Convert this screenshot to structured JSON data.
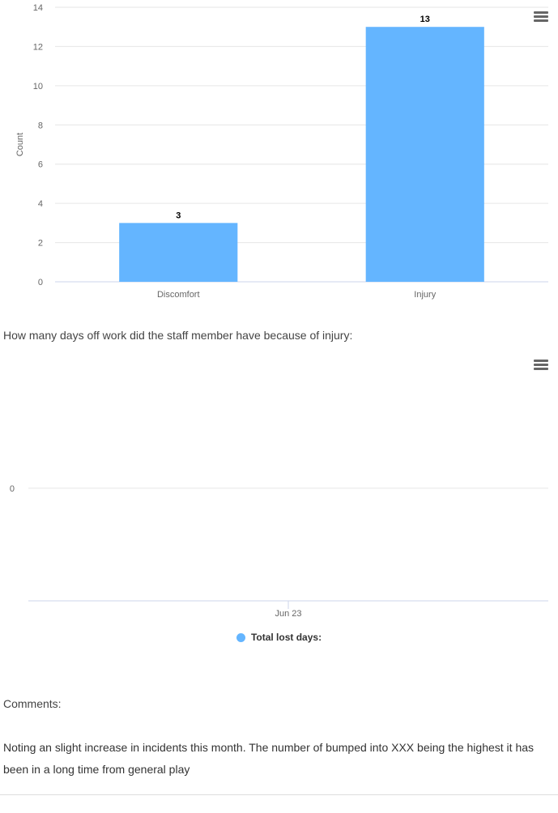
{
  "chart1": {
    "type": "bar",
    "categories": [
      "Discomfort",
      "Injury"
    ],
    "values": [
      3,
      13
    ],
    "ylabel": "Count",
    "ylim": [
      0,
      14
    ],
    "yticks": [
      "0",
      "2",
      "4",
      "6",
      "8",
      "10",
      "12",
      "14"
    ],
    "color": "#64b5ff",
    "grid": true
  },
  "question": "How many days off work did the staff member have because of injury:",
  "chart2": {
    "type": "line",
    "x": [
      "Jun 23"
    ],
    "series": [
      {
        "name": "Total lost days:",
        "values": [
          0
        ]
      }
    ],
    "yticks": [
      "0"
    ],
    "color": "#64b5ff",
    "legend": "bottom-center"
  },
  "comments": {
    "label": "Comments:",
    "text": "Noting an slight increase in incidents this month. The number of bumped into XXX being the highest it has been in a long time from general play"
  },
  "chart_data": [
    {
      "type": "bar",
      "categories": [
        "Discomfort",
        "Injury"
      ],
      "values": [
        3,
        13
      ],
      "title": "",
      "xlabel": "",
      "ylabel": "Count",
      "ylim": [
        0,
        14
      ],
      "grid": true,
      "data_labels": [
        "3",
        "13"
      ]
    },
    {
      "type": "line",
      "x": [
        "Jun 23"
      ],
      "series": [
        {
          "name": "Total lost days:",
          "values": [
            0
          ]
        }
      ],
      "title": "",
      "xlabel": "",
      "ylabel": "",
      "grid": true,
      "legend": "bottom-center"
    }
  ]
}
